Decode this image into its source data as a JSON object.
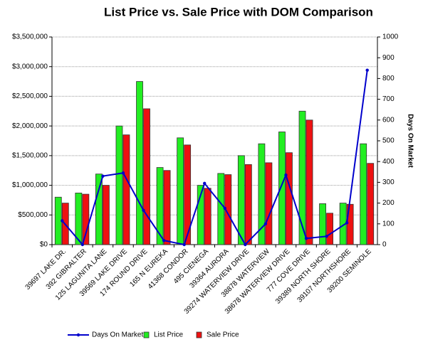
{
  "chart_data": {
    "type": "bar",
    "title": "List Price vs. Sale Price with DOM Comparison",
    "y2_label": "Days On Market",
    "categories": [
      "39697 LAKE DR.",
      "392 GIBRALTER",
      "125 LAGUNITA LANE",
      "39569 LAKE DRIVE",
      "174 ROUND DRIVE",
      "165 N EUREKA",
      "41368 CONDOR",
      "495 CIENEGA",
      "39364 AURORA",
      "39274 WATERVIEW DRIVE",
      "38878 WATERVIEW",
      "38678 WATERVIEW DRIVE",
      "777 COVE DRIVE",
      "39389 NORTH SHORE",
      "39107 NORTHSHORE",
      "39200 SEMINOLE"
    ],
    "series": [
      {
        "name": "Days On Market",
        "color": "#0000cc",
        "axis": "y2",
        "values": [
          115,
          0,
          330,
          345,
          165,
          20,
          0,
          295,
          175,
          0,
          100,
          335,
          30,
          40,
          105,
          840
        ]
      },
      {
        "name": "List Price",
        "color": "#22ee22",
        "values": [
          800000,
          870000,
          1190000,
          2000000,
          2750000,
          1300000,
          1800000,
          1000000,
          1200000,
          1500000,
          1700000,
          1900000,
          2250000,
          690000,
          700000,
          1700000
        ]
      },
      {
        "name": "Sale Price",
        "color": "#ee1111",
        "values": [
          700000,
          850000,
          1000000,
          1850000,
          2290000,
          1250000,
          1680000,
          950000,
          1180000,
          1350000,
          1380000,
          1550000,
          2100000,
          530000,
          680000,
          1370000
        ]
      }
    ],
    "ylim": [
      0,
      3500000
    ],
    "yticks": [
      {
        "value": 0,
        "label": "$0"
      },
      {
        "value": 500000,
        "label": "$500,000"
      },
      {
        "value": 1000000,
        "label": "$1,000,000"
      },
      {
        "value": 1500000,
        "label": "$1,500,000"
      },
      {
        "value": 2000000,
        "label": "$2,000,000"
      },
      {
        "value": 2500000,
        "label": "$2,500,000"
      },
      {
        "value": 3000000,
        "label": "$3,000,000"
      },
      {
        "value": 3500000,
        "label": "$3,500,000"
      }
    ],
    "y2lim": [
      0,
      1000
    ],
    "y2ticks": [
      0,
      100,
      200,
      300,
      400,
      500,
      600,
      700,
      800,
      900,
      1000
    ],
    "grid": true
  }
}
